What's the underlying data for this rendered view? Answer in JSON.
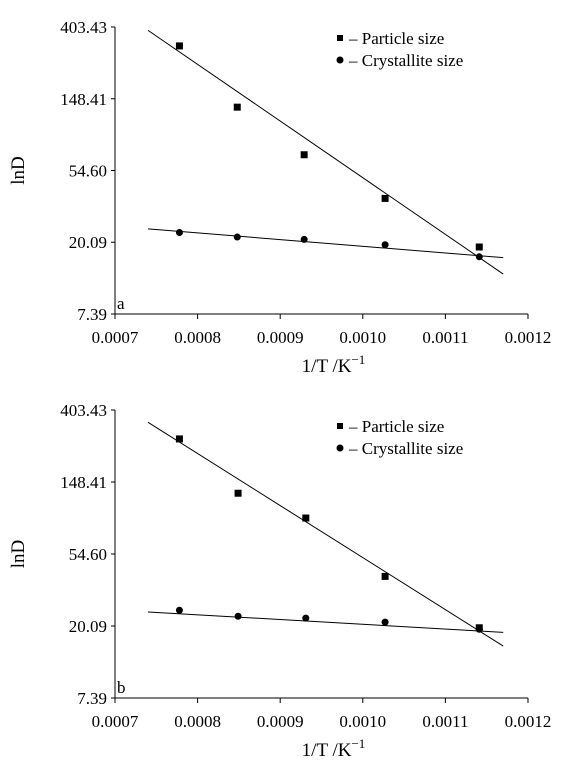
{
  "chart_data": [
    {
      "type": "scatter",
      "panel_label": "a",
      "xlabel": "1/T /K",
      "xlabel_superscript": "−1",
      "ylabel": "lnD",
      "x_ticks": [
        "0.0007",
        "0.0008",
        "0.0009",
        "0.0010",
        "0.0011",
        "0.0012"
      ],
      "y_ticks": [
        "7.39",
        "20.09",
        "54.60",
        "148.41",
        "403.43"
      ],
      "xlim": [
        0.0007,
        0.0012
      ],
      "ylim": [
        7.39,
        403.43
      ],
      "y_scale": "log",
      "grid": false,
      "legend_position": "top-right",
      "series": [
        {
          "name": "– Particle size",
          "marker": "square",
          "x": [
            0.000778,
            0.000848,
            0.000929,
            0.001027,
            0.001141
          ],
          "y": [
            310,
            132,
            68,
            37,
            18.8
          ],
          "fit_line": {
            "x": [
              0.00074,
              0.00117
            ],
            "y": [
              385,
              12.9
            ]
          }
        },
        {
          "name": "– Crystallite size",
          "marker": "circle",
          "x": [
            0.000778,
            0.000848,
            0.000929,
            0.001027,
            0.001141
          ],
          "y": [
            23.0,
            21.6,
            20.9,
            19.4,
            16.4
          ],
          "fit_line": {
            "x": [
              0.00074,
              0.00117
            ],
            "y": [
              24.2,
              16.2
            ]
          }
        }
      ]
    },
    {
      "type": "scatter",
      "panel_label": "b",
      "xlabel": "1/T /K",
      "xlabel_superscript": "−1",
      "ylabel": "lnD",
      "x_ticks": [
        "0.0007",
        "0.0008",
        "0.0009",
        "0.0010",
        "0.0011",
        "0.0012"
      ],
      "y_ticks": [
        "7.39",
        "20.09",
        "54.60",
        "148.41",
        "403.43"
      ],
      "xlim": [
        0.0007,
        0.0012
      ],
      "ylim": [
        7.39,
        403.43
      ],
      "y_scale": "log",
      "grid": false,
      "legend_position": "top-right",
      "series": [
        {
          "name": "– Particle size",
          "marker": "square",
          "x": [
            0.000778,
            0.000849,
            0.000931,
            0.001027,
            0.001141
          ],
          "y": [
            270,
            127,
            90,
            40,
            19.6
          ],
          "fit_line": {
            "x": [
              0.00074,
              0.00117
            ],
            "y": [
              340,
              15.2
            ]
          }
        },
        {
          "name": "– Crystallite size",
          "marker": "circle",
          "x": [
            0.000778,
            0.000849,
            0.000931,
            0.001027,
            0.001141
          ],
          "y": [
            25.0,
            23.0,
            22.4,
            21.2,
            19.2
          ],
          "fit_line": {
            "x": [
              0.00074,
              0.00117
            ],
            "y": [
              24.4,
              18.4
            ]
          }
        }
      ]
    }
  ]
}
